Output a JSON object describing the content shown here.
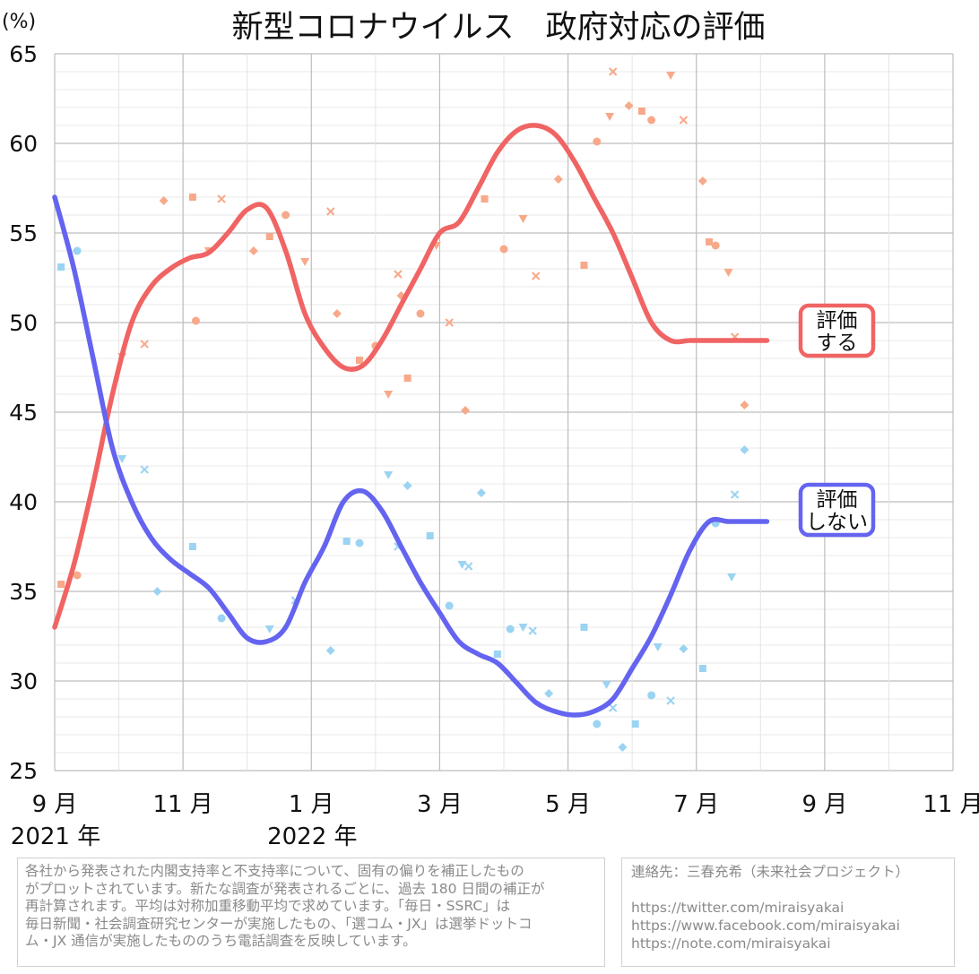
{
  "chart_data": {
    "type": "line",
    "title": "新型コロナウイルス　政府対応の評価",
    "ylabel": "(%)",
    "ylim": [
      25,
      65
    ],
    "yticks": [
      25,
      30,
      35,
      40,
      45,
      50,
      55,
      60,
      65
    ],
    "xlim": [
      0,
      14
    ],
    "x_ticks": [
      {
        "x": 0,
        "label": "9 月",
        "year": "2021 年"
      },
      {
        "x": 2,
        "label": "11 月",
        "year": ""
      },
      {
        "x": 4,
        "label": "1 月",
        "year": "2022 年"
      },
      {
        "x": 6,
        "label": "3 月",
        "year": ""
      },
      {
        "x": 8,
        "label": "5 月",
        "year": ""
      },
      {
        "x": 10,
        "label": "7 月",
        "year": ""
      },
      {
        "x": 12,
        "label": "9 月",
        "year": ""
      },
      {
        "x": 14,
        "label": "11 月",
        "year": ""
      }
    ],
    "grid": true,
    "series": [
      {
        "name": "評価する",
        "label_lines": [
          "評価",
          "する"
        ],
        "color": "#f06464",
        "scatter_color": "#f7a98a",
        "x": [
          0.0,
          0.3,
          0.6,
          0.9,
          1.2,
          1.5,
          1.8,
          2.1,
          2.4,
          2.7,
          3.0,
          3.3,
          3.6,
          3.9,
          4.2,
          4.5,
          4.8,
          5.1,
          5.4,
          5.7,
          6.0,
          6.3,
          6.6,
          6.9,
          7.2,
          7.5,
          7.8,
          8.1,
          8.4,
          8.7,
          9.0,
          9.3,
          9.6,
          9.9,
          10.2,
          10.5,
          10.8,
          11.1
        ],
        "y": [
          33.0,
          36.5,
          41.0,
          46.0,
          50.0,
          52.0,
          53.0,
          53.6,
          53.9,
          55.0,
          56.3,
          56.4,
          54.0,
          50.5,
          48.6,
          47.5,
          47.6,
          49.0,
          51.0,
          53.0,
          55.0,
          55.6,
          57.5,
          59.5,
          60.7,
          61.0,
          60.5,
          59.0,
          57.0,
          55.0,
          52.5,
          50.0,
          49.0,
          49.0,
          49.0,
          49.0,
          49.0,
          49.0
        ],
        "points_x": [
          0.1,
          0.35,
          1.05,
          1.4,
          1.7,
          2.15,
          2.2,
          2.4,
          2.6,
          3.1,
          3.35,
          3.6,
          3.9,
          4.3,
          4.4,
          4.75,
          5.0,
          5.2,
          5.35,
          5.4,
          5.5,
          5.7,
          5.95,
          6.15,
          6.4,
          6.7,
          7.0,
          7.3,
          7.5,
          7.85,
          8.25,
          8.45,
          8.65,
          8.7,
          8.95,
          9.15,
          9.3,
          9.6,
          9.8,
          10.1,
          10.2,
          10.3,
          10.5,
          10.6,
          10.75
        ],
        "points_y": [
          35.4,
          35.9,
          48.1,
          48.8,
          56.8,
          57.0,
          50.1,
          54.0,
          56.9,
          54.0,
          54.8,
          56.0,
          53.4,
          56.2,
          50.5,
          47.9,
          48.7,
          46.0,
          52.7,
          51.5,
          46.9,
          50.5,
          54.3,
          50.0,
          45.1,
          56.9,
          54.1,
          55.8,
          52.6,
          58.0,
          53.2,
          60.1,
          61.5,
          64.0,
          62.1,
          61.8,
          61.3,
          63.8,
          61.3,
          57.9,
          54.5,
          54.3,
          52.8,
          49.2,
          45.4
        ]
      },
      {
        "name": "評価しない",
        "label_lines": [
          "評価",
          "しない"
        ],
        "color": "#6464f0",
        "scatter_color": "#9bd3f2",
        "x": [
          0.0,
          0.3,
          0.6,
          0.9,
          1.2,
          1.5,
          1.8,
          2.1,
          2.4,
          2.7,
          3.0,
          3.3,
          3.6,
          3.9,
          4.2,
          4.5,
          4.8,
          5.1,
          5.4,
          5.7,
          6.0,
          6.3,
          6.6,
          6.9,
          7.2,
          7.5,
          7.8,
          8.1,
          8.4,
          8.7,
          9.0,
          9.3,
          9.6,
          9.9,
          10.2,
          10.5,
          10.8,
          11.1
        ],
        "y": [
          57.0,
          53.0,
          48.0,
          43.0,
          40.0,
          38.0,
          36.8,
          36.0,
          35.2,
          33.8,
          32.4,
          32.2,
          33.0,
          35.5,
          37.5,
          40.0,
          40.6,
          39.5,
          37.5,
          35.5,
          33.8,
          32.2,
          31.5,
          31.0,
          29.9,
          28.8,
          28.3,
          28.1,
          28.3,
          29.0,
          30.7,
          32.5,
          34.8,
          37.3,
          38.9,
          38.9,
          38.9,
          38.9
        ],
        "points_x": [
          0.1,
          0.35,
          1.05,
          1.4,
          1.6,
          2.15,
          2.6,
          3.35,
          3.75,
          4.3,
          4.55,
          4.75,
          5.2,
          5.35,
          5.5,
          5.85,
          6.15,
          6.35,
          6.45,
          6.65,
          6.9,
          7.1,
          7.3,
          7.45,
          7.7,
          8.25,
          8.45,
          8.6,
          8.7,
          8.85,
          9.05,
          9.3,
          9.4,
          9.6,
          9.8,
          10.1,
          10.3,
          10.55,
          10.6,
          10.75
        ],
        "points_y": [
          53.1,
          54.0,
          42.4,
          41.8,
          35.0,
          37.5,
          33.5,
          32.9,
          34.5,
          31.7,
          37.8,
          37.7,
          41.5,
          37.5,
          40.9,
          38.1,
          34.2,
          36.5,
          36.4,
          40.5,
          31.5,
          32.9,
          33.0,
          32.8,
          29.3,
          33.0,
          27.6,
          29.8,
          28.5,
          26.3,
          27.6,
          29.2,
          31.9,
          28.9,
          31.8,
          30.7,
          38.8,
          35.8,
          40.4,
          42.9
        ]
      }
    ]
  },
  "notes": {
    "left_lines": [
      "各社から発表された内閣支持率と不支持率について、固有の偏りを補正したもの",
      "がプロットされています。新たな調査が発表されるごとに、過去 180 日間の補正が",
      "再計算されます。平均は対称加重移動平均で求めています。「毎日・SSRC」は",
      "毎日新聞・社会調査研究センターが実施したもの、「選コム・JX」は選挙ドットコ",
      "ム・JX 通信が実施したもののうち電話調査を反映しています。"
    ],
    "contact_title": "連絡先：三春充希（未来社会プロジェクト）",
    "links": [
      "https://twitter.com/miraisyakai",
      "https://www.facebook.com/miraisyakai",
      "https://note.com/miraisyakai"
    ]
  }
}
